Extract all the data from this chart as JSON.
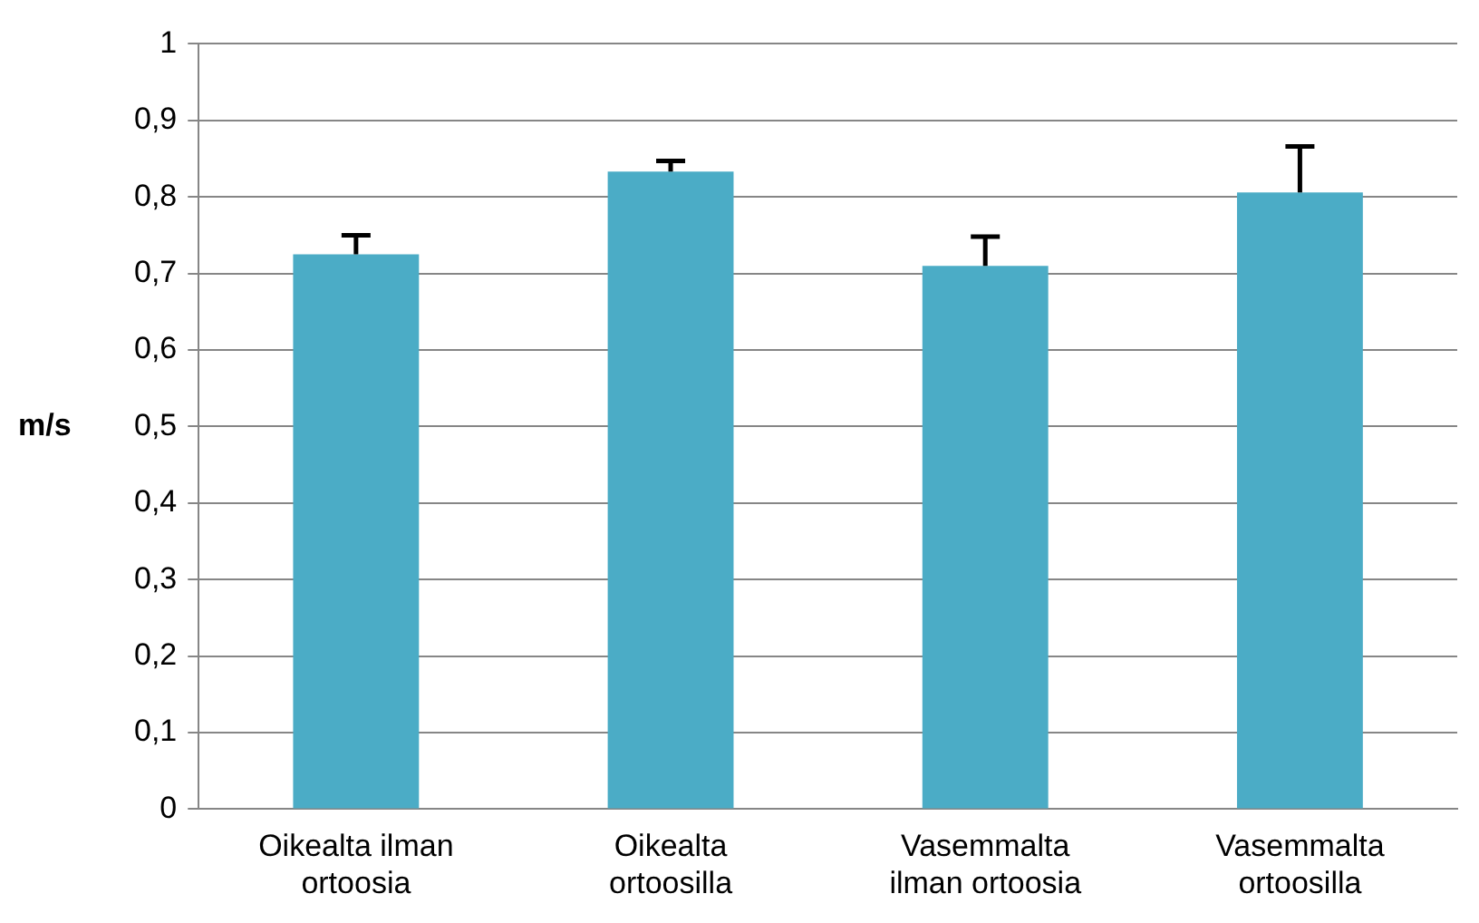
{
  "chart_data": {
    "type": "bar",
    "ylabel": "m/s",
    "categories": [
      "Oikealta ilman ortoosia",
      "Oikealta ortoosilla",
      "Vasemmalta ilman ortoosia",
      "Vasemmalta ortoosilla"
    ],
    "values": [
      0.725,
      0.833,
      0.71,
      0.806
    ],
    "errors": [
      [
        0.725,
        0.75
      ],
      [
        0.833,
        0.847
      ],
      [
        0.71,
        0.748
      ],
      [
        0.806,
        0.866
      ]
    ],
    "color": "#4bacc6",
    "ylim": [
      0,
      1
    ],
    "yticks": [
      0,
      {
        "value": 0.1,
        "label": "0,1"
      },
      {
        "value": 0.2,
        "label": "0,2"
      },
      {
        "value": 0.3,
        "label": "0,3"
      },
      {
        "value": 0.4,
        "label": "0,4"
      },
      {
        "value": 0.5,
        "label": "0,5"
      },
      {
        "value": 0.6,
        "label": "0,6"
      },
      {
        "value": 0.7,
        "label": "0,7"
      },
      {
        "value": 0.8,
        "label": "0,8"
      },
      {
        "value": 0.9,
        "label": "0,9"
      },
      1
    ],
    "grid": "y",
    "legend": false
  }
}
